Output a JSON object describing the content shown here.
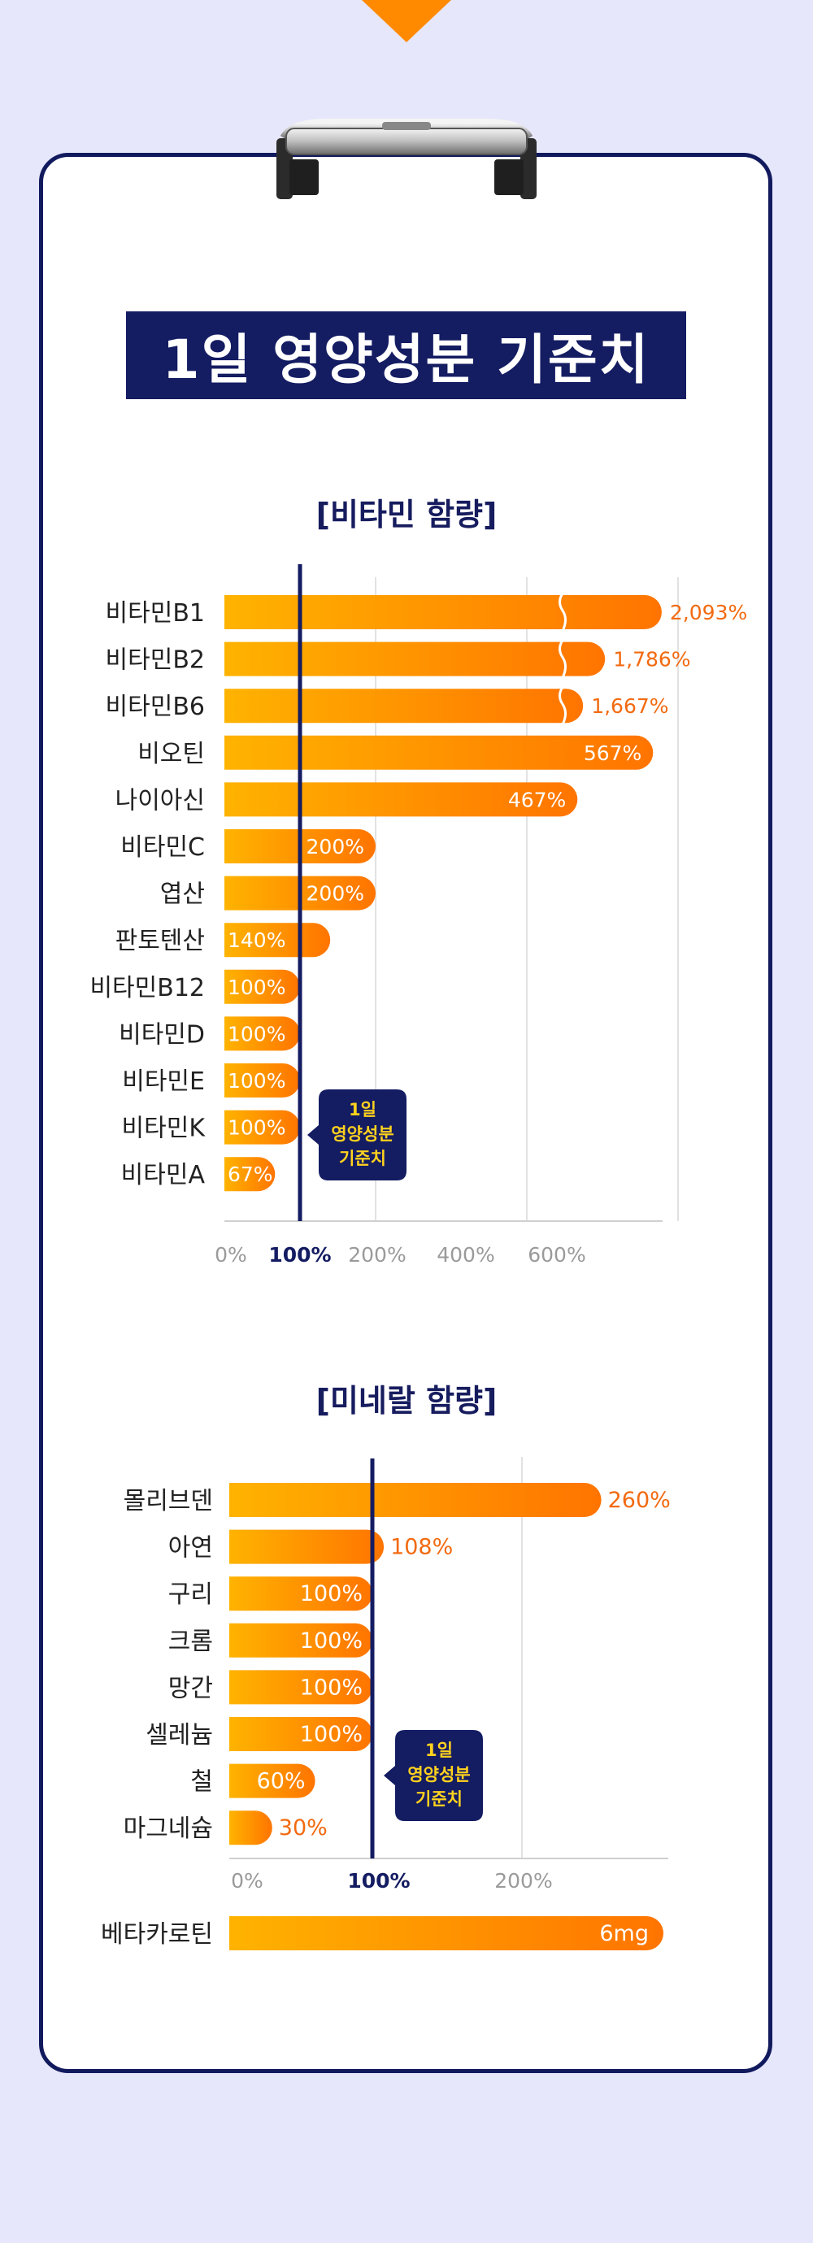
{
  "title": "1일 영양성분 기준치",
  "colors": {
    "bar_start": "#ffb300",
    "bar_end": "#ff7400",
    "navy": "#141c62",
    "label_orange": "#f26a10",
    "badge_text": "#ffd21e",
    "tick_grey": "#9a9a9a",
    "grid": "#e2e2e2"
  },
  "chart_data": [
    {
      "type": "bar",
      "orientation": "horizontal",
      "title": "[비타민 함량]",
      "categories": [
        "비타민B1",
        "비타민B2",
        "비타민B6",
        "비오틴",
        "나이아신",
        "비타민C",
        "엽산",
        "판토텐산",
        "비타민B12",
        "비타민D",
        "비타민E",
        "비타민K",
        "비타민A"
      ],
      "values": [
        2093,
        1786,
        1667,
        567,
        467,
        200,
        200,
        140,
        100,
        100,
        100,
        100,
        67
      ],
      "value_labels": [
        "2,093%",
        "1,786%",
        "1,667%",
        "567%",
        "467%",
        "200%",
        "200%",
        "140%",
        "100%",
        "100%",
        "100%",
        "100%",
        "67%"
      ],
      "broken_axis": [
        true,
        true,
        true,
        false,
        false,
        false,
        false,
        false,
        false,
        false,
        false,
        false,
        false
      ],
      "x_ticks": [
        "0%",
        "100%",
        "200%",
        "400%",
        "600%"
      ],
      "x_tick_values": [
        0,
        100,
        200,
        400,
        600
      ],
      "reference_line": {
        "value": 100,
        "label_lines": [
          "1일",
          "영양성분",
          "기준치"
        ]
      }
    },
    {
      "type": "bar",
      "orientation": "horizontal",
      "title": "[미네랄 함량]",
      "categories": [
        "몰리브덴",
        "아연",
        "구리",
        "크롬",
        "망간",
        "셀레늄",
        "철",
        "마그네슘"
      ],
      "values": [
        260,
        108,
        100,
        100,
        100,
        100,
        60,
        30
      ],
      "value_labels": [
        "260%",
        "108%",
        "100%",
        "100%",
        "100%",
        "100%",
        "60%",
        "30%"
      ],
      "x_ticks": [
        "0%",
        "100%",
        "200%"
      ],
      "x_tick_values": [
        0,
        100,
        200
      ],
      "reference_line": {
        "value": 100,
        "label_lines": [
          "1일",
          "영양성분",
          "기준치"
        ]
      }
    },
    {
      "type": "bar",
      "orientation": "horizontal",
      "categories": [
        "베타카로틴"
      ],
      "value_labels": [
        "6mg"
      ]
    }
  ]
}
